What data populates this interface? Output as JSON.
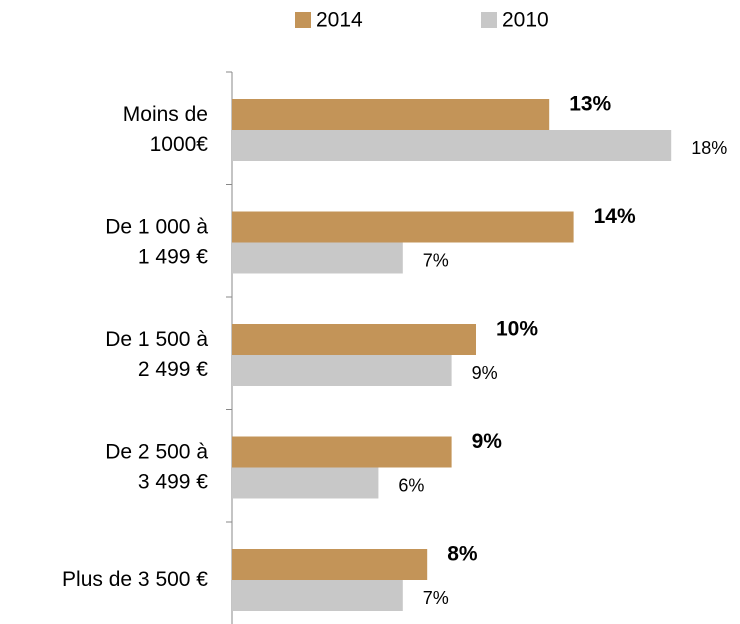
{
  "chart_data": {
    "type": "hbar",
    "categories": [
      "Moins de\n1000€",
      "De 1 000 à\n1 499 €",
      "De 1 500 à\n2 499 €",
      "De 2 500 à\n3 499 €",
      "Plus de 3 500 €"
    ],
    "series": [
      {
        "name": "2014",
        "color": "#c39458",
        "values": [
          13,
          14,
          10,
          9,
          8
        ],
        "value_labels": [
          "13%",
          "14%",
          "10%",
          "9%",
          "8%"
        ]
      },
      {
        "name": "2010",
        "color": "#c8c8c8",
        "values": [
          18,
          7,
          9,
          6,
          7
        ],
        "value_labels": [
          "18%",
          "7%",
          "9%",
          "6%",
          "7%"
        ]
      }
    ],
    "legend": "top"
  }
}
